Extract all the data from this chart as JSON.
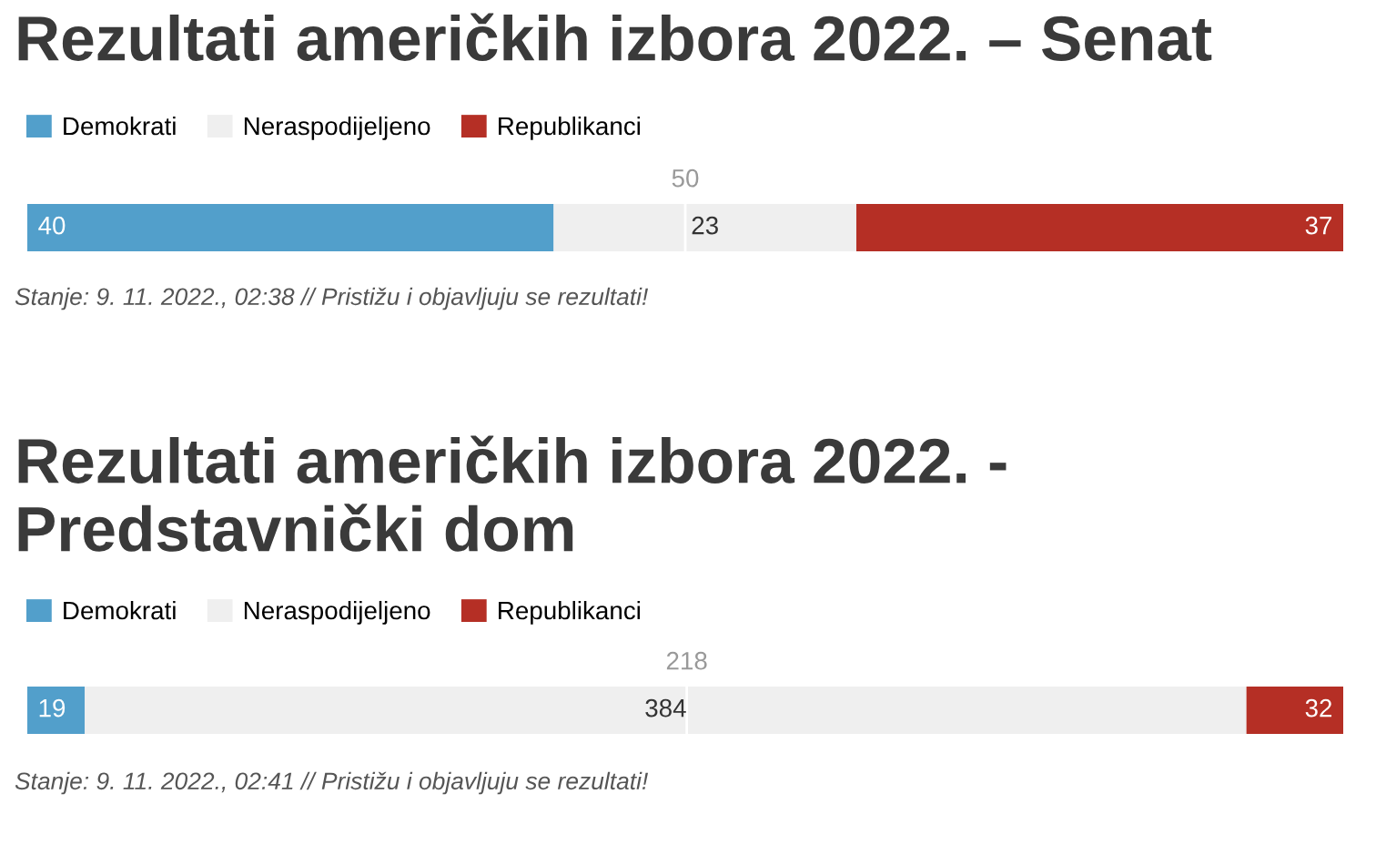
{
  "chart_data": [
    {
      "type": "bar",
      "orientation": "horizontal",
      "stacked": true,
      "title": "Rezultati američkih izbora 2022. – Senat",
      "categories": [
        null
      ],
      "xlim": [
        0,
        100
      ],
      "tick_labels": false,
      "legend": "top left",
      "data_labels": true,
      "series": [
        {
          "name": "Demokrati",
          "color": "#529fcb",
          "values": [
            40
          ]
        },
        {
          "name": "Neraspodijeljeno",
          "color": "#efefef",
          "values": [
            23
          ]
        },
        {
          "name": "Republikanci",
          "color": "#b52f25",
          "values": [
            37
          ]
        }
      ],
      "ref_lines": [
        {
          "axis": "x",
          "value": 50,
          "label": "50",
          "color": "#ffffff"
        }
      ],
      "annotations": [
        "Stanje: 9. 11. 2022., 02:38 // Pristižu i objavljuju se rezultati!"
      ]
    },
    {
      "type": "bar",
      "orientation": "horizontal",
      "stacked": true,
      "title": "Rezultati američkih izbora 2022. - Predstavnički dom",
      "categories": [
        null
      ],
      "xlim": [
        0,
        435
      ],
      "tick_labels": false,
      "legend": "top left",
      "data_labels": true,
      "series": [
        {
          "name": "Demokrati",
          "color": "#529fcb",
          "values": [
            19
          ]
        },
        {
          "name": "Neraspodijeljeno",
          "color": "#efefef",
          "values": [
            384
          ]
        },
        {
          "name": "Republikanci",
          "color": "#b52f25",
          "values": [
            32
          ]
        }
      ],
      "ref_lines": [
        {
          "axis": "x",
          "value": 218,
          "label": "218",
          "color": "#ffffff"
        }
      ],
      "annotations": [
        "Stanje: 9. 11. 2022., 02:41 // Pristižu i objavljuju se rezultati!"
      ]
    }
  ]
}
